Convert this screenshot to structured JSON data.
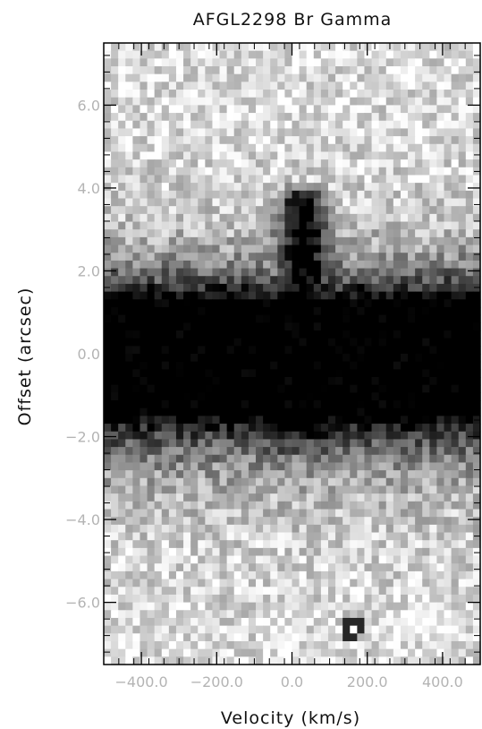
{
  "chart_data": {
    "type": "heatmap",
    "title": "AFGL2298 Br Gamma",
    "xlabel": "Velocity (km/s)",
    "ylabel": "Offset (arcsec)",
    "xlim": [
      -500,
      500
    ],
    "ylim": [
      -7.5,
      7.5
    ],
    "x_ticks": [
      -400,
      -200,
      0,
      200,
      400
    ],
    "x_tick_labels": [
      "−400.0",
      "−200.0",
      "0.0",
      "200.0",
      "400.0"
    ],
    "y_ticks": [
      -6,
      -4,
      -2,
      0,
      2,
      4,
      6
    ],
    "y_tick_labels": [
      "−6.0",
      "−4.0",
      "−2.0",
      "0.0",
      "2.0",
      "4.0",
      "6.0"
    ],
    "colormap": "grayscale-inverted",
    "grid": false,
    "features": {
      "continuum_band": {
        "offset_center": -0.1,
        "offset_half_width": 1.4
      },
      "emission_jet": {
        "velocity_center": 30,
        "offset_range": [
          1.5,
          4.2
        ]
      },
      "ring_feature": {
        "velocity": 160,
        "offset": -6.6
      }
    }
  },
  "colors": {
    "axis": "#000000",
    "title_text": "#111111",
    "tick_text": "#b4b4b4",
    "background": "#ffffff"
  }
}
